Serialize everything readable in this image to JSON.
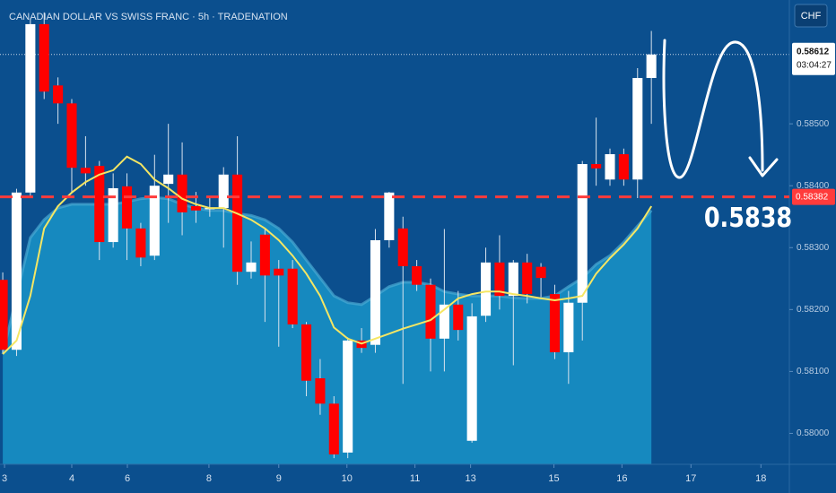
{
  "chart_data": {
    "type": "candlestick",
    "title": "CANADIAN DOLLAR VS SWISS FRANC · 5h · TRADENATION",
    "currency": "CHF",
    "ylim": [
      0.5795,
      0.587
    ],
    "yticks": [
      {
        "value": 0.585,
        "label": "0.58500"
      },
      {
        "value": 0.584,
        "label": "0.58400"
      },
      {
        "value": 0.583,
        "label": "0.58300"
      },
      {
        "value": 0.582,
        "label": "0.58200"
      },
      {
        "value": 0.581,
        "label": "0.58100"
      },
      {
        "value": 0.58,
        "label": "0.58000"
      }
    ],
    "xlim": [
      -0.2,
      57
    ],
    "xticks": [
      {
        "value": 0.13,
        "label": "3"
      },
      {
        "value": 5,
        "label": "4"
      },
      {
        "value": 9.03,
        "label": "6"
      },
      {
        "value": 14.94,
        "label": "8"
      },
      {
        "value": 20,
        "label": "9"
      },
      {
        "value": 24.94,
        "label": "10"
      },
      {
        "value": 29.87,
        "label": "11"
      },
      {
        "value": 33.9,
        "label": "13"
      },
      {
        "value": 39.94,
        "label": "15"
      },
      {
        "value": 44.87,
        "label": "16"
      },
      {
        "value": 49.87,
        "label": "17"
      },
      {
        "value": 54.94,
        "label": "18"
      }
    ],
    "up_color": "#ffffff",
    "down_color": "#ff0000",
    "open": [
      0.58248,
      0.58135,
      0.58389,
      0.58661,
      0.58562,
      0.58533,
      0.58429,
      0.58432,
      0.58309,
      0.58399,
      0.58331,
      0.58287,
      0.58403,
      0.58418,
      0.58367,
      0.58362,
      0.58364,
      0.58418,
      0.58261,
      0.58321,
      0.58266,
      0.58266,
      0.58176,
      0.58089,
      0.58048,
      0.57969,
      0.5815,
      0.58143,
      0.58312,
      0.58331,
      0.5827,
      0.5824,
      0.58153,
      0.58208,
      0.57988,
      0.5819,
      0.58276,
      0.58222,
      0.58276,
      0.58269,
      0.58225,
      0.58131,
      0.58211,
      0.58435,
      0.5841,
      0.58451,
      0.5841,
      0.58574
    ],
    "high": [
      0.5826,
      0.58395,
      0.5867,
      0.5868,
      0.58575,
      0.5854,
      0.5848,
      0.5844,
      0.5842,
      0.5842,
      0.5834,
      0.5845,
      0.585,
      0.5847,
      0.5839,
      0.5838,
      0.5843,
      0.5848,
      0.5831,
      0.5833,
      0.5828,
      0.5828,
      0.5818,
      0.5812,
      0.5806,
      0.58155,
      0.5817,
      0.5833,
      0.5839,
      0.5835,
      0.5828,
      0.5825,
      0.5833,
      0.5823,
      0.5821,
      0.583,
      0.5832,
      0.5828,
      0.5829,
      0.58275,
      0.5824,
      0.5823,
      0.5844,
      0.5851,
      0.5846,
      0.5846,
      0.5859,
      0.5865
    ],
    "low": [
      0.5813,
      0.58125,
      0.5838,
      0.5854,
      0.585,
      0.5839,
      0.584,
      0.5828,
      0.583,
      0.5828,
      0.5827,
      0.5828,
      0.5834,
      0.5832,
      0.5834,
      0.5835,
      0.583,
      0.5824,
      0.5825,
      0.5818,
      0.5814,
      0.5817,
      0.5806,
      0.5803,
      0.5796,
      0.5796,
      0.5813,
      0.5813,
      0.583,
      0.5808,
      0.5823,
      0.581,
      0.581,
      0.5815,
      0.57985,
      0.5818,
      0.582,
      0.5811,
      0.5821,
      0.5822,
      0.5812,
      0.5808,
      0.5815,
      0.584,
      0.584,
      0.584,
      0.5838,
      0.585
    ],
    "close": [
      0.58135,
      0.58389,
      0.58661,
      0.58552,
      0.58533,
      0.58429,
      0.5842,
      0.58309,
      0.58396,
      0.58331,
      0.58284,
      0.584,
      0.58418,
      0.58357,
      0.5836,
      0.58364,
      0.58418,
      0.58261,
      0.58276,
      0.58255,
      0.58255,
      0.58176,
      0.58085,
      0.58048,
      0.57966,
      0.5815,
      0.58138,
      0.58312,
      0.58389,
      0.5827,
      0.5824,
      0.58153,
      0.58208,
      0.58167,
      0.58189,
      0.58276,
      0.58222,
      0.58276,
      0.58225,
      0.58251,
      0.58131,
      0.58211,
      0.58435,
      0.58428,
      0.58451,
      0.5841,
      0.58574,
      0.58612
    ],
    "ma_line": {
      "color": "#f5e663",
      "values": [
        0.58128,
        0.5815,
        0.58222,
        0.58331,
        0.58367,
        0.58389,
        0.58406,
        0.58418,
        0.58425,
        0.58447,
        0.58435,
        0.5841,
        0.58396,
        0.58379,
        0.5837,
        0.58364,
        0.58364,
        0.58355,
        0.58345,
        0.58331,
        0.58312,
        0.58287,
        0.58258,
        0.58222,
        0.58171,
        0.58153,
        0.58145,
        0.58153,
        0.58161,
        0.58169,
        0.58176,
        0.58183,
        0.582,
        0.58218,
        0.58225,
        0.58229,
        0.58229,
        0.58225,
        0.58222,
        0.58218,
        0.58215,
        0.58218,
        0.58222,
        0.58258,
        0.58283,
        0.58305,
        0.58331,
        0.58367
      ]
    },
    "ma_area": {
      "color": "#1689bf",
      "values": [
        0.58128,
        0.58222,
        0.58316,
        0.58345,
        0.58364,
        0.5837,
        0.5837,
        0.5837,
        0.5837,
        0.58374,
        0.58379,
        0.58381,
        0.58379,
        0.5837,
        0.58364,
        0.5836,
        0.5836,
        0.58355,
        0.58352,
        0.58345,
        0.58331,
        0.58309,
        0.5828,
        0.58251,
        0.58222,
        0.58211,
        0.58208,
        0.58222,
        0.58237,
        0.58244,
        0.58244,
        0.5824,
        0.58229,
        0.58225,
        0.58222,
        0.58222,
        0.58222,
        0.58219,
        0.58218,
        0.58218,
        0.58222,
        0.58237,
        0.58251,
        0.58273,
        0.58287,
        0.58309,
        0.58335,
        0.5836
      ]
    },
    "last_price": {
      "value": 0.58612,
      "label": "0.58612"
    },
    "countdown": "03:04:27",
    "level": {
      "value": 0.58382,
      "label": "0.58382",
      "color": "#ff3b3b"
    },
    "annotation": "0.5838"
  }
}
